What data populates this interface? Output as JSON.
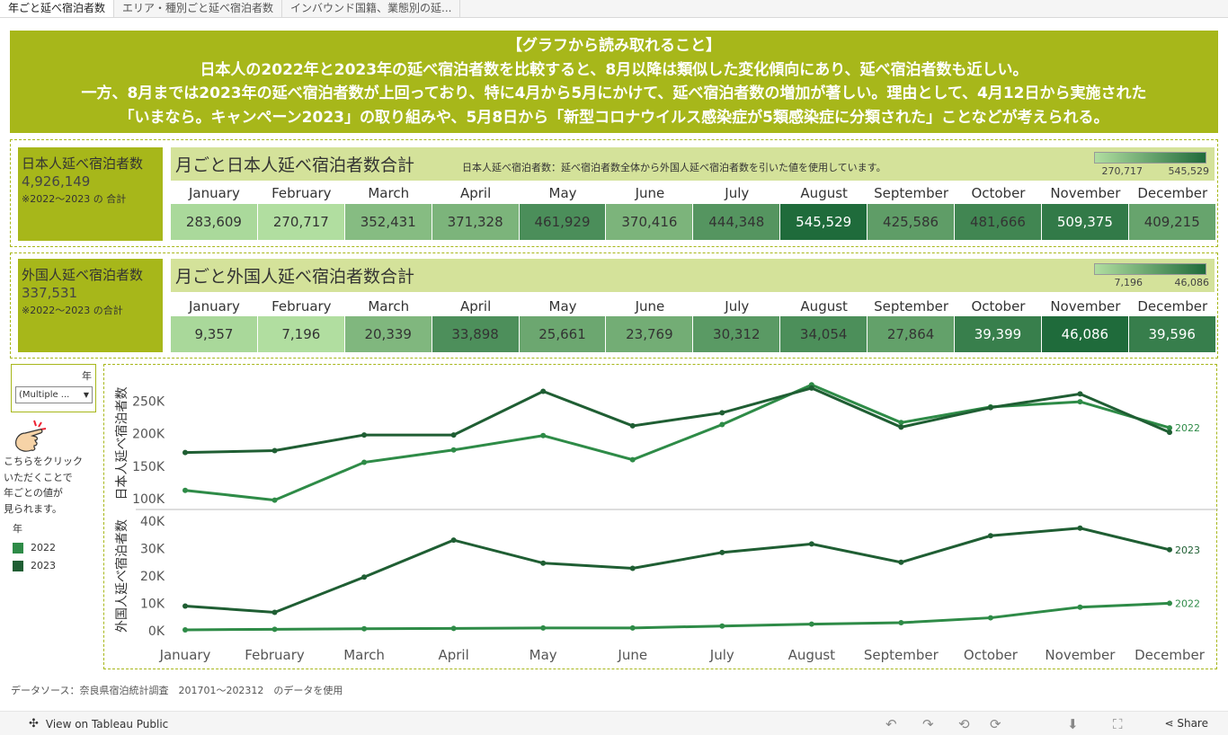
{
  "tabs": [
    {
      "label": "年ごと延べ宿泊者数",
      "active": true
    },
    {
      "label": "エリア・種別ごと延べ宿泊者数",
      "active": false
    },
    {
      "label": "インバウンド国籍、業態別の延...",
      "active": false
    }
  ],
  "banner": {
    "line1": "【グラフから読み取れること】",
    "line2": "日本人の2022年と2023年の延べ宿泊者数を比較すると、8月以降は類似した変化傾向にあり、延べ宿泊者数も近しい。",
    "line3": "一方、8月までは2023年の延べ宿泊者数が上回っており、特に4月から5月にかけて、延べ宿泊者数の増加が著しい。理由として、4月12日から実施された",
    "line4": "「いまなら。キャンペーン2023」の取り組みや、5月8日から「新型コロナウイルス感染症が5類感染症に分類された」ことなどが考えられる。"
  },
  "months": [
    "January",
    "February",
    "March",
    "April",
    "May",
    "June",
    "July",
    "August",
    "September",
    "October",
    "November",
    "December"
  ],
  "japanese": {
    "side_title": "日本人延べ宿泊者数",
    "side_total": "4,926,149",
    "side_note": "※2022～2023 の 合計",
    "title": "月ごと日本人延べ宿泊者数合計",
    "note": "日本人延べ宿泊者数：延べ宿泊者数全体から外国人延べ宿泊者数を引いた値を使用しています。",
    "legend_min": "270,717",
    "legend_max": "545,529",
    "values": [
      283609,
      270717,
      352431,
      371328,
      461929,
      370416,
      444348,
      545529,
      425586,
      481666,
      509375,
      409215
    ],
    "labels": [
      "283,609",
      "270,717",
      "352,431",
      "371,328",
      "461,929",
      "370,416",
      "444,348",
      "545,529",
      "425,586",
      "481,666",
      "509,375",
      "409,215"
    ]
  },
  "foreign": {
    "side_title": "外国人延べ宿泊者数",
    "side_total": "337,531",
    "side_note": "※2022～2023 の合計",
    "title": "月ごと外国人延べ宿泊者数合計",
    "legend_min": "7,196",
    "legend_max": "46,086",
    "values": [
      9357,
      7196,
      20339,
      33898,
      25661,
      23769,
      30312,
      34054,
      27864,
      39399,
      46086,
      39596
    ],
    "labels": [
      "9,357",
      "7,196",
      "20,339",
      "33,898",
      "25,661",
      "23,769",
      "30,312",
      "34,054",
      "27,864",
      "39,399",
      "46,086",
      "39,596"
    ]
  },
  "filter": {
    "label": "年",
    "value": "(Multiple ..."
  },
  "help": {
    "icon": "pointing-hand-icon",
    "line1": "こちらをクリック",
    "line2": "いただくことで",
    "line3": "年ごとの値が",
    "line4": "見られます。"
  },
  "year_legend": {
    "title": "年",
    "items": [
      {
        "label": "2022",
        "color": "#2e8b47"
      },
      {
        "label": "2023",
        "color": "#1f5e33"
      }
    ]
  },
  "chart_data": [
    {
      "type": "line",
      "ylabel": "日本人延べ宿泊者数",
      "x": [
        "January",
        "February",
        "March",
        "April",
        "May",
        "June",
        "July",
        "August",
        "September",
        "October",
        "November",
        "December"
      ],
      "yticks": [
        "100K",
        "150K",
        "200K",
        "250K"
      ],
      "ylim": [
        85000,
        285000
      ],
      "series": [
        {
          "name": "2022",
          "color": "#2e8b47",
          "values": [
            113000,
            98000,
            156000,
            175000,
            197000,
            160000,
            214000,
            275000,
            217000,
            241000,
            249000,
            209000
          ]
        },
        {
          "name": "2023",
          "color": "#1f5e33",
          "values": [
            171000,
            174000,
            198000,
            198000,
            265000,
            212000,
            232000,
            270000,
            210000,
            240000,
            261000,
            202000
          ]
        }
      ],
      "end_labels": [
        "2022"
      ]
    },
    {
      "type": "line",
      "ylabel": "外国人延べ宿泊者数",
      "x": [
        "January",
        "February",
        "March",
        "April",
        "May",
        "June",
        "July",
        "August",
        "September",
        "October",
        "November",
        "December"
      ],
      "yticks": [
        "0K",
        "10K",
        "20K",
        "30K",
        "40K"
      ],
      "ylim": [
        -3000,
        43000
      ],
      "series": [
        {
          "name": "2022",
          "color": "#2e8b47",
          "values": [
            300,
            500,
            700,
            800,
            1000,
            1000,
            1700,
            2400,
            2900,
            4700,
            8600,
            10000
          ]
        },
        {
          "name": "2023",
          "color": "#1f5e33",
          "values": [
            9000,
            6700,
            19600,
            33100,
            24700,
            22800,
            28600,
            31700,
            25000,
            34700,
            37500,
            29600
          ]
        }
      ],
      "end_labels": [
        "2023",
        "2022"
      ]
    }
  ],
  "source": "データソース：奈良県宿泊統計調査　201701～202312　のデータを使用",
  "footer": {
    "view_label": "View on Tableau Public",
    "share_label": "Share"
  }
}
